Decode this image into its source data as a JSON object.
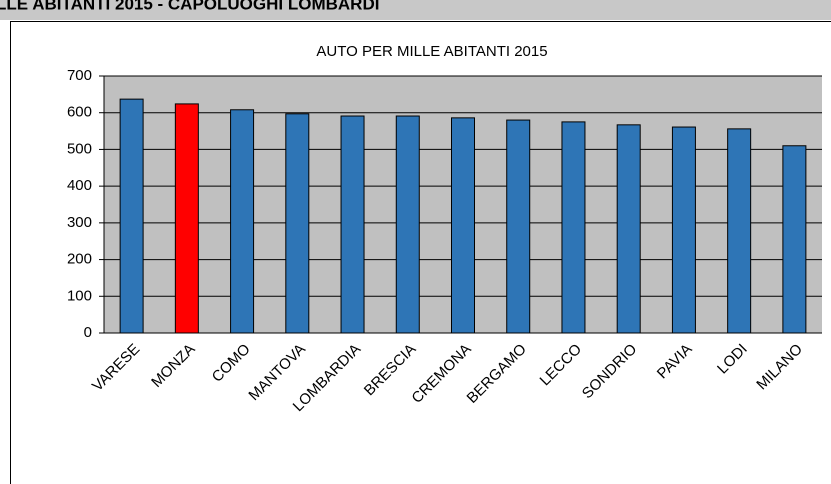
{
  "header": {
    "title": "LLE ABITANTI 2015 - CAPOLUOGHI LOMBARDI"
  },
  "chart_data": {
    "type": "bar",
    "title": "AUTO PER MILLE ABITANTI 2015",
    "categories": [
      "VARESE",
      "MONZA",
      "COMO",
      "MANTOVA",
      "LOMBARDIA",
      "BRESCIA",
      "CREMONA",
      "BERGAMO",
      "LECCO",
      "SONDRIO",
      "PAVIA",
      "LODI",
      "MILANO"
    ],
    "values": [
      637,
      624,
      608,
      597,
      591,
      591,
      586,
      580,
      575,
      567,
      561,
      556,
      510
    ],
    "colors": [
      "#2e75b6",
      "#ff0000",
      "#2e75b6",
      "#2e75b6",
      "#2e75b6",
      "#2e75b6",
      "#2e75b6",
      "#2e75b6",
      "#2e75b6",
      "#2e75b6",
      "#2e75b6",
      "#2e75b6",
      "#2e75b6"
    ],
    "ylim": [
      0,
      700
    ],
    "yticks": [
      0,
      100,
      200,
      300,
      400,
      500,
      600,
      700
    ],
    "grid": true
  }
}
